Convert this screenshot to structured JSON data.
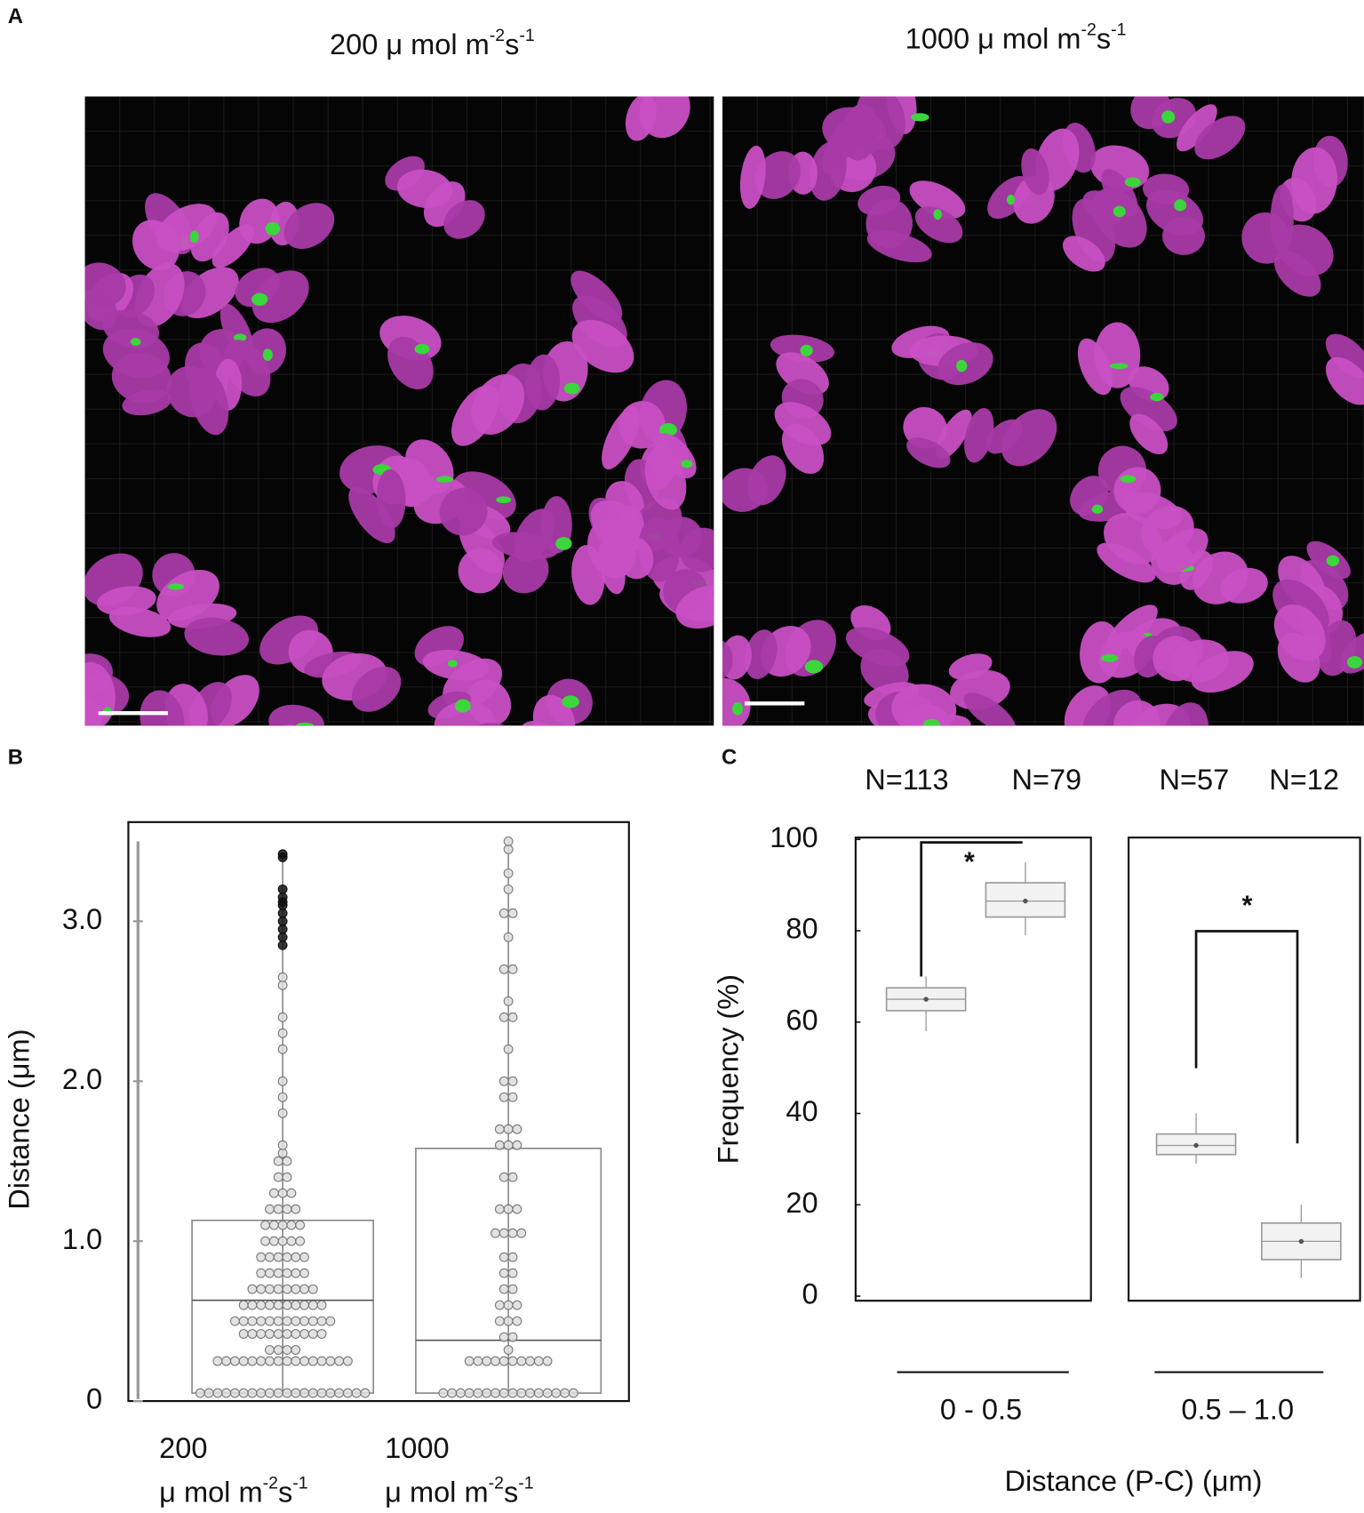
{
  "panel_letters": [
    "A",
    "B",
    "C"
  ],
  "images": [
    {
      "title": [
        {
          "text": "200 μ mol m"
        },
        {
          "text": "-2",
          "sup": true
        },
        {
          "text": "s"
        },
        {
          "text": "-1",
          "sup": true
        }
      ]
    },
    {
      "title": [
        {
          "text": "1000 μ mol m"
        },
        {
          "text": "-2",
          "sup": true
        },
        {
          "text": "s"
        },
        {
          "text": "-1",
          "sup": true
        }
      ]
    }
  ],
  "chart_data": [
    {
      "type": "box",
      "ylabel": "Distance (μm)",
      "ylim": [
        0,
        3.62
      ],
      "yticks": [
        0,
        {
          "value": 1,
          "label": "1.0"
        },
        {
          "value": 2,
          "label": "2.0"
        },
        {
          "value": 3,
          "label": "3.0"
        }
      ],
      "category_unit": [
        {
          "text": "μ mol m"
        },
        {
          "text": "-2",
          "sup": true
        },
        {
          "text": "s"
        },
        {
          "text": "-1",
          "sup": true
        }
      ],
      "point_color": "#dddddd",
      "outlier_color": "#111111",
      "box_color": "#888888",
      "series": [
        {
          "name": "200",
          "min": 0.05,
          "q1": 0.05,
          "median": 0.63,
          "q3": 1.13,
          "max": 3.4,
          "points": [
            0.05,
            0.05,
            0.05,
            0.05,
            0.05,
            0.05,
            0.05,
            0.05,
            0.05,
            0.05,
            0.05,
            0.05,
            0.05,
            0.05,
            0.05,
            0.05,
            0.05,
            0.05,
            0.05,
            0.05,
            0.25,
            0.25,
            0.25,
            0.25,
            0.25,
            0.25,
            0.25,
            0.25,
            0.25,
            0.25,
            0.25,
            0.25,
            0.25,
            0.25,
            0.25,
            0.25,
            0.32,
            0.32,
            0.32,
            0.32,
            0.42,
            0.42,
            0.42,
            0.42,
            0.42,
            0.42,
            0.42,
            0.42,
            0.42,
            0.42,
            0.5,
            0.5,
            0.5,
            0.5,
            0.5,
            0.5,
            0.5,
            0.5,
            0.5,
            0.5,
            0.5,
            0.5,
            0.6,
            0.6,
            0.6,
            0.6,
            0.6,
            0.6,
            0.6,
            0.6,
            0.6,
            0.6,
            0.7,
            0.7,
            0.7,
            0.7,
            0.7,
            0.7,
            0.7,
            0.7,
            0.8,
            0.8,
            0.8,
            0.8,
            0.8,
            0.8,
            0.9,
            0.9,
            0.9,
            0.9,
            0.9,
            0.9,
            1.0,
            1.0,
            1.0,
            1.0,
            1.0,
            1.1,
            1.1,
            1.1,
            1.1,
            1.1,
            1.2,
            1.2,
            1.2,
            1.2,
            1.3,
            1.3,
            1.3,
            1.4,
            1.4,
            1.5,
            1.5,
            1.55,
            1.6,
            1.8,
            1.9,
            2.0,
            2.2,
            2.3,
            2.4,
            2.6,
            2.65
          ],
          "outliers": [
            2.85,
            2.9,
            2.95,
            3.0,
            3.05,
            3.1,
            3.12,
            3.15,
            3.2,
            3.4,
            3.42
          ]
        },
        {
          "name": "1000",
          "min": 0.05,
          "q1": 0.05,
          "median": 0.38,
          "q3": 1.58,
          "max": 3.5,
          "points": [
            0.05,
            0.05,
            0.05,
            0.05,
            0.05,
            0.05,
            0.05,
            0.05,
            0.05,
            0.05,
            0.05,
            0.05,
            0.05,
            0.05,
            0.05,
            0.05,
            0.25,
            0.25,
            0.25,
            0.25,
            0.25,
            0.25,
            0.25,
            0.25,
            0.25,
            0.25,
            0.32,
            0.4,
            0.4,
            0.5,
            0.5,
            0.5,
            0.6,
            0.6,
            0.6,
            0.7,
            0.7,
            0.8,
            0.8,
            0.9,
            0.9,
            1.05,
            1.05,
            1.05,
            1.05,
            1.2,
            1.2,
            1.2,
            1.4,
            1.4,
            1.6,
            1.6,
            1.6,
            1.7,
            1.7,
            1.7,
            1.9,
            1.9,
            2.0,
            2.0,
            2.2,
            2.4,
            2.4,
            2.5,
            2.7,
            2.7,
            2.9,
            3.05,
            3.05,
            3.2,
            3.3,
            3.45,
            3.5
          ],
          "outliers": []
        }
      ]
    },
    {
      "type": "box",
      "group": "0 - 0.5",
      "ylabel": "Frequency (%)",
      "xlabel": "Distance (P-C)  (μm)",
      "ylim": [
        -1,
        100.4
      ],
      "yticks": [
        0,
        20,
        40,
        60,
        80,
        100
      ],
      "box_color": "#999999",
      "series": [
        {
          "name": "N=113",
          "min": 58,
          "q1": 62.5,
          "median": 65,
          "q3": 67.5,
          "max": 70,
          "mean": 65
        },
        {
          "name": "N=79",
          "min": 79,
          "q1": 83,
          "median": 86.5,
          "q3": 90.5,
          "max": 95,
          "mean": 86.5
        }
      ],
      "annotation": "*"
    },
    {
      "type": "box",
      "group": "0.5 – 1.0",
      "ylim": [
        -1,
        100.4
      ],
      "box_color": "#999999",
      "series": [
        {
          "name": "N=57",
          "min": 29,
          "q1": 31,
          "median": 33,
          "q3": 35.5,
          "max": 40,
          "mean": 33
        },
        {
          "name": "N=12",
          "min": 4,
          "q1": 8,
          "median": 12,
          "q3": 16,
          "max": 20,
          "mean": 12
        }
      ],
      "annotation": "*"
    }
  ]
}
